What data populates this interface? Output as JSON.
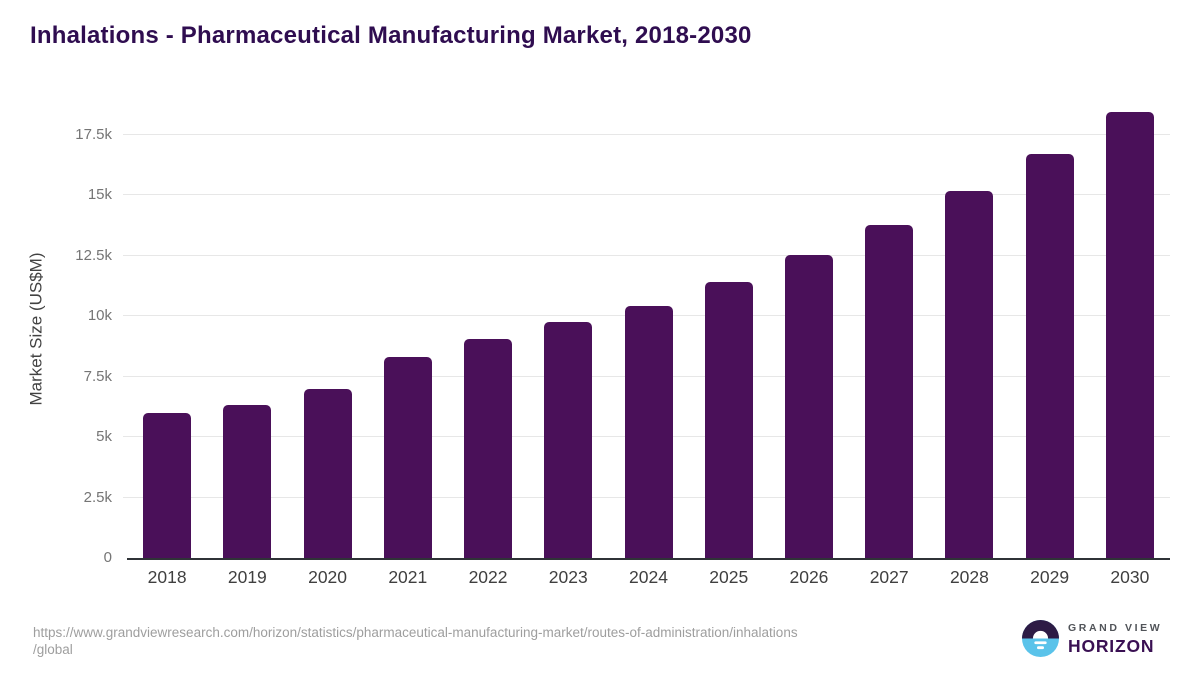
{
  "title": "Inhalations - Pharmaceutical Manufacturing Market, 2018-2030",
  "source": {
    "line1": "https://www.grandviewresearch.com/horizon/statistics/pharmaceutical-manufacturing-market/routes-of-administration/inhalations",
    "line2": "/global"
  },
  "logo": {
    "top_text": "GRAND VIEW",
    "bottom_text": "HORIZON"
  },
  "colors": {
    "bar": "#4a1059",
    "title": "#2f0d50",
    "axis_label": "#424242",
    "y_tick_label": "#757575",
    "x_tick_label": "#3f3f3f",
    "gridline": "#e7e7e7",
    "axis_line": "#2f3337",
    "url_text": "#9e9e9e",
    "logo_circle_top": "#2d1b45",
    "logo_circle_bottom": "#5ac3ea",
    "logo_horizon_text": "#3a1053"
  },
  "chart_data": {
    "type": "bar",
    "title": "Inhalations - Pharmaceutical Manufacturing Market, 2018-2030",
    "categories": [
      "2018",
      "2019",
      "2020",
      "2021",
      "2022",
      "2023",
      "2024",
      "2025",
      "2026",
      "2027",
      "2028",
      "2029",
      "2030"
    ],
    "values": [
      6000,
      6320,
      6980,
      8300,
      9070,
      9740,
      10400,
      11400,
      12530,
      13760,
      15160,
      16700,
      18420
    ],
    "xlabel": "",
    "ylabel": "Market Size (US$M)",
    "ylim": [
      0,
      18930
    ],
    "ytick_values": [
      0,
      2500,
      5000,
      7500,
      10000,
      12500,
      15000,
      17500
    ],
    "ytick_labels": [
      "0",
      "2.5k",
      "5k",
      "7.5k",
      "10k",
      "12.5k",
      "15k",
      "17.5k"
    ],
    "grid": "horizontal",
    "legend": "none"
  }
}
